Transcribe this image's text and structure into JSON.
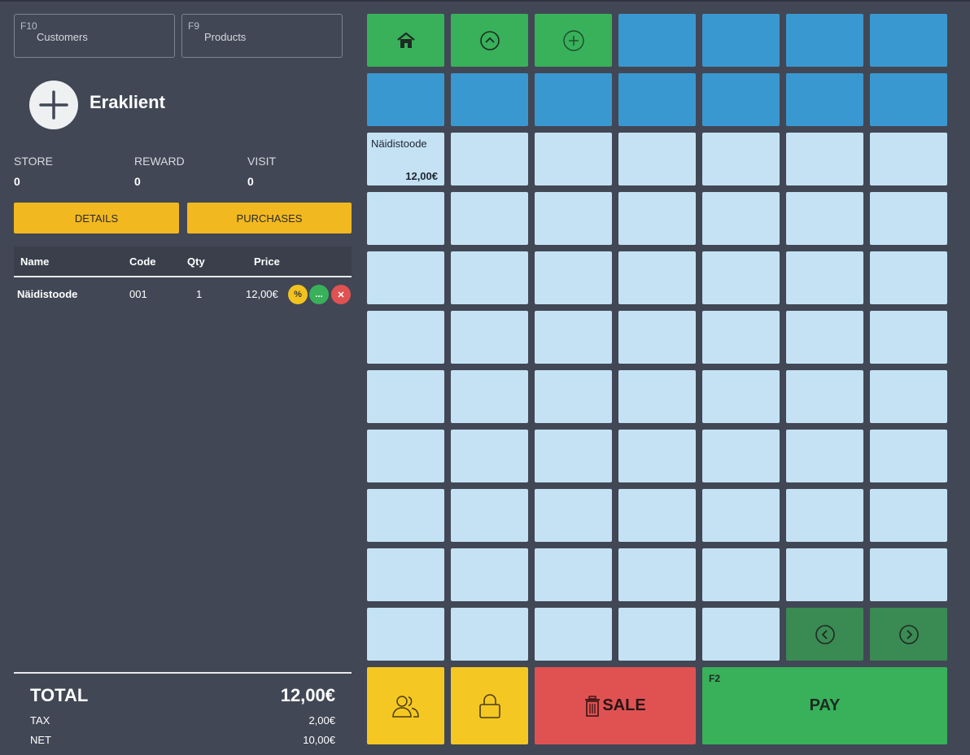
{
  "search": {
    "customers_key": "F10",
    "customers_label": "Customers",
    "products_key": "F9",
    "products_label": "Products"
  },
  "customer": {
    "name": "Eraklient",
    "stats": [
      {
        "label": "STORE",
        "value": "0"
      },
      {
        "label": "REWARD",
        "value": "0"
      },
      {
        "label": "VISIT",
        "value": "0"
      }
    ],
    "details_label": "DETAILS",
    "purchases_label": "PURCHASES"
  },
  "cart": {
    "headers": {
      "name": "Name",
      "code": "Code",
      "qty": "Qty",
      "price": "Price"
    },
    "rows": [
      {
        "name": "Näidistoode",
        "code": "001",
        "qty": "1",
        "price": "12,00€",
        "discount_icon": "%",
        "more_icon": "...",
        "remove_icon": "✕"
      }
    ]
  },
  "totals": {
    "total_label": "TOTAL",
    "total_value": "12,00€",
    "tax_label": "TAX",
    "tax_value": "2,00€",
    "net_label": "NET",
    "net_value": "10,00€"
  },
  "grid": {
    "product": {
      "name": "Näidistoode",
      "price": "12,00€"
    },
    "icons": [
      "home-icon",
      "chevron-up-circle-icon",
      "plus-circle-icon",
      "chevron-left-circle-icon",
      "chevron-right-circle-icon"
    ]
  },
  "actions": {
    "sale_label": "SALE",
    "pay_key": "F2",
    "pay_label": "PAY"
  },
  "colors": {
    "background": "#414755",
    "green": "#38b15a",
    "blue": "#3a98d0",
    "light_blue": "#c4e2f4",
    "dark_green": "#3a8a53",
    "yellow": "#f2b81f",
    "red": "#e05252"
  }
}
